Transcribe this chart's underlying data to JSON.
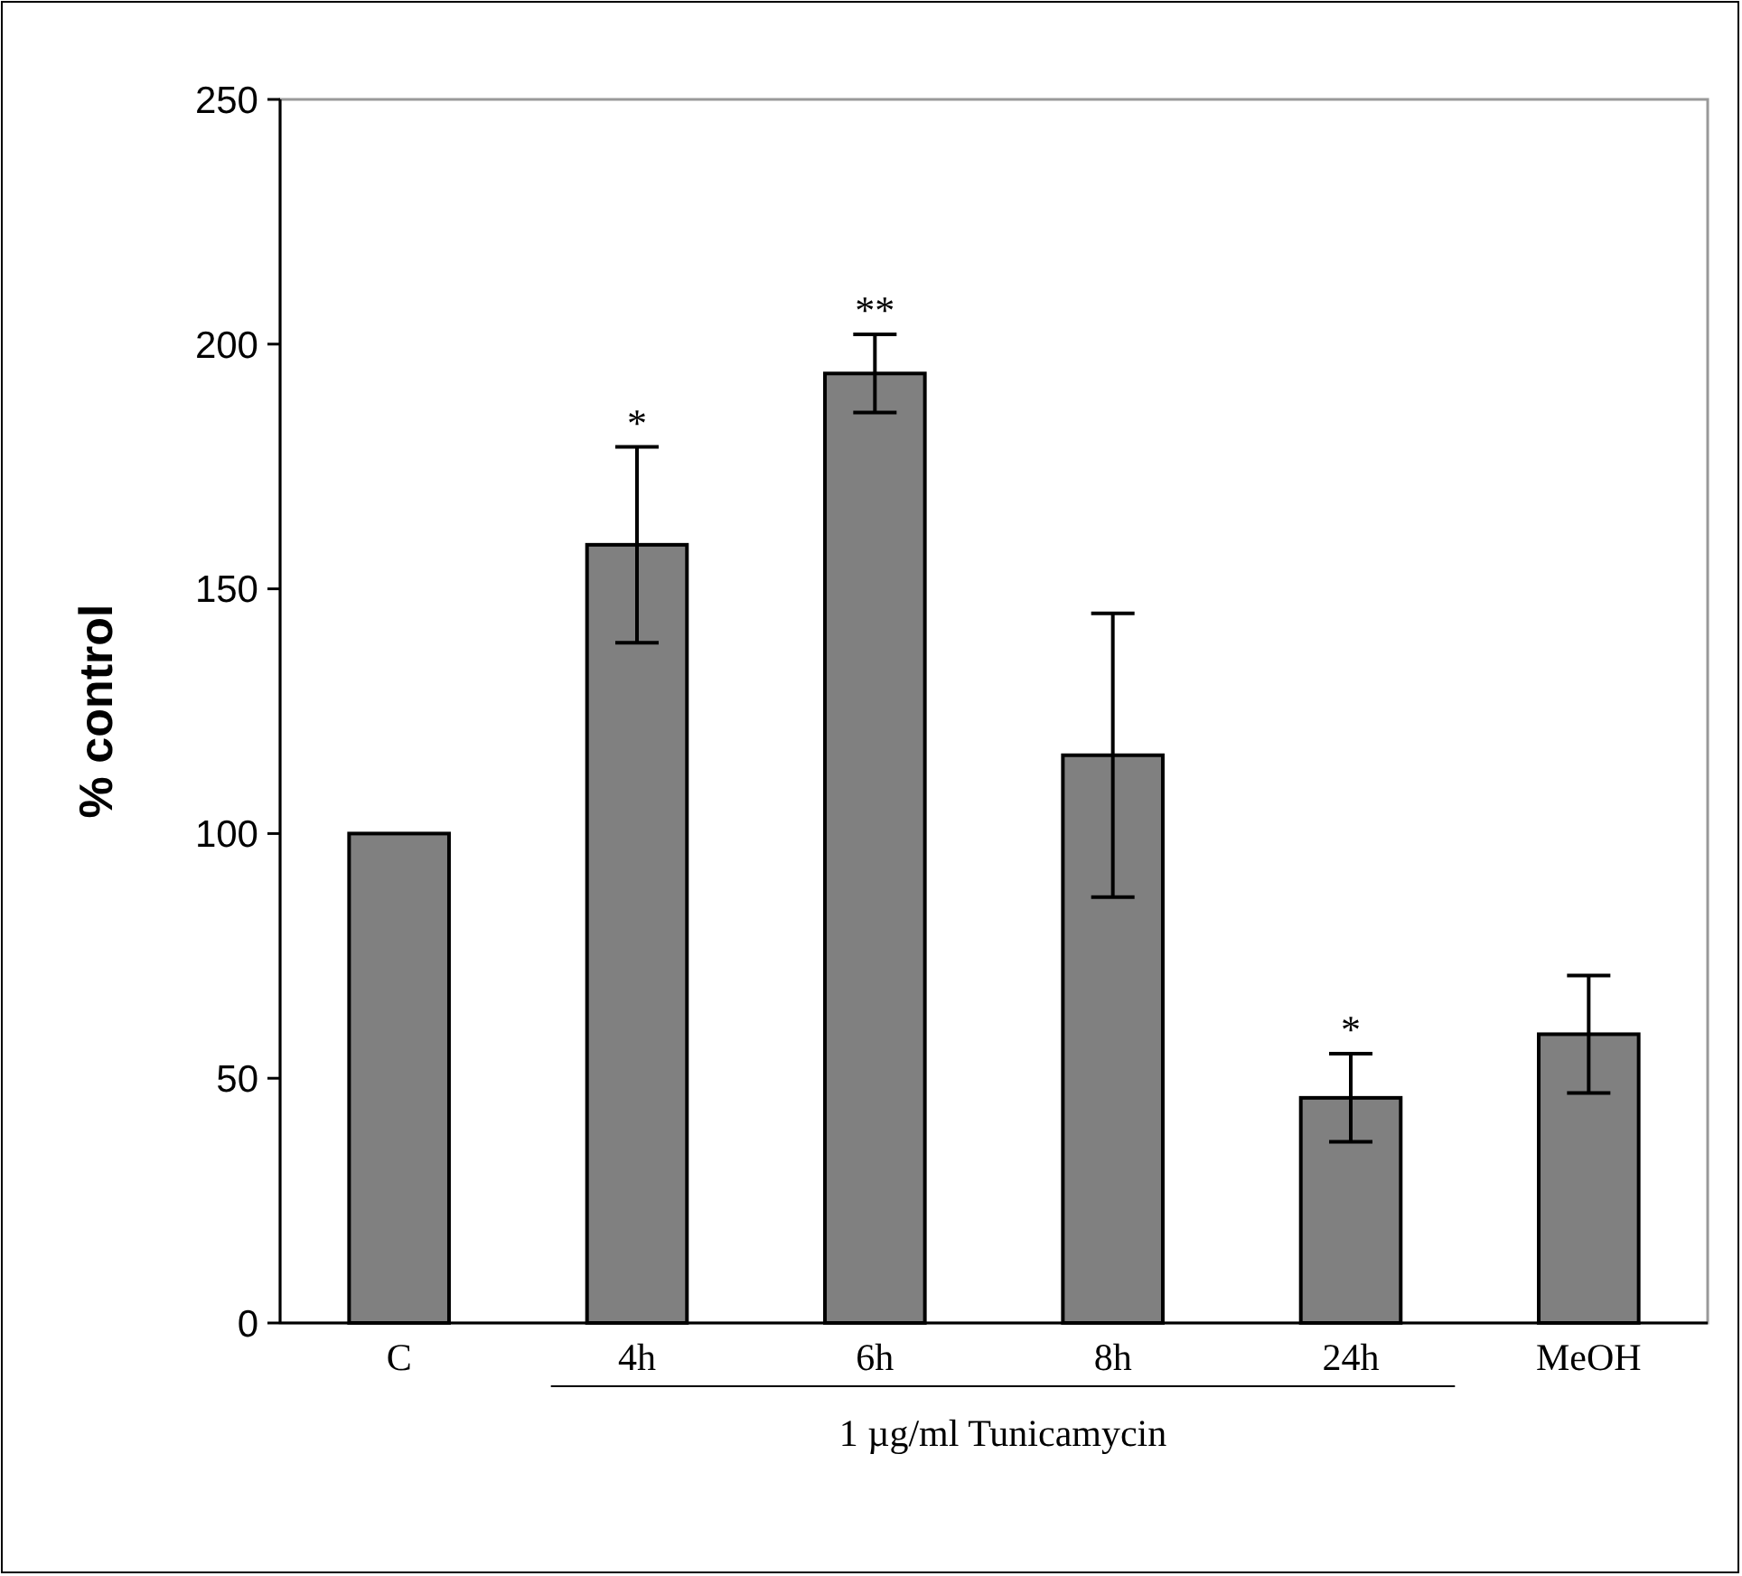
{
  "chart_data": {
    "type": "bar",
    "ylabel": "% control",
    "categories": [
      "C",
      "4h",
      "6h",
      "8h",
      "24h",
      "MeOH"
    ],
    "values": [
      100,
      159,
      194,
      116,
      46,
      59
    ],
    "errors": [
      null,
      20,
      8,
      29,
      9,
      12
    ],
    "color": "#808080",
    "ylim": [
      0,
      250
    ],
    "yticks": [
      0,
      50,
      100,
      150,
      200,
      250
    ],
    "grid": false,
    "annotations": [
      {
        "text": "*",
        "x": "4h",
        "y": 179
      },
      {
        "text": "**",
        "x": "6h",
        "y": 202
      },
      {
        "text": "*",
        "x": "24h",
        "y": 55
      },
      "1 µg/ml Tunicamycin"
    ]
  }
}
